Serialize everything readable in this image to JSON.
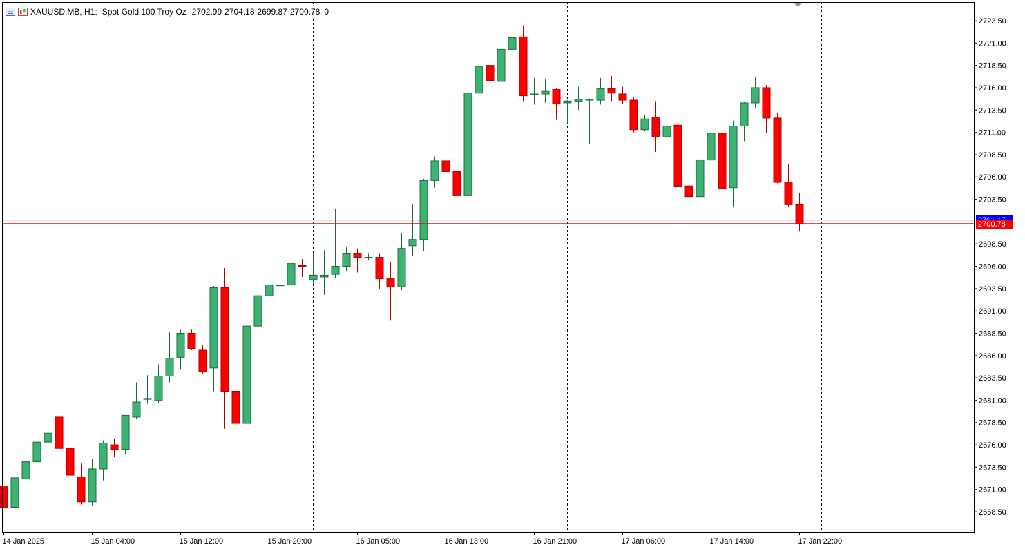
{
  "header": {
    "symbol": "XAUUSD.MB, H1:",
    "description": "Spot Gold 100 Troy Oz",
    "open": "2702.99",
    "high": "2704.18",
    "low": "2699.87",
    "close": "2700.78",
    "volume": "0"
  },
  "colors": {
    "bull": "#3cb371",
    "bear": "#ff0000",
    "ask_line": "#0000ff",
    "bid_line": "#ff0000",
    "grid": "#000000",
    "axis_text": "#000000"
  },
  "price_tags": {
    "ask": "2701.17",
    "bid": "2700.78"
  },
  "chart_data": {
    "type": "candlestick",
    "title": "XAUUSD.MB, H1: Spot Gold 100 Troy Oz",
    "timeframe": "H1",
    "y_tick_labels": [
      "2723.50",
      "2721.00",
      "2718.50",
      "2716.00",
      "2713.50",
      "2711.00",
      "2708.50",
      "2706.00",
      "2703.50",
      "2698.50",
      "2696.00",
      "2693.50",
      "2691.00",
      "2688.50",
      "2686.00",
      "2683.50",
      "2681.00",
      "2678.50",
      "2676.00",
      "2673.50",
      "2671.00",
      "2668.50"
    ],
    "x_tick_labels": [
      "14 Jan 2025",
      "15 Jan 04:00",
      "15 Jan 12:00",
      "15 Jan 20:00",
      "16 Jan 05:00",
      "16 Jan 13:00",
      "16 Jan 21:00",
      "17 Jan 06:00",
      "17 Jan 14:00",
      "17 Jan 22:00"
    ],
    "x_tick_index": [
      0,
      8,
      16,
      24,
      32,
      40,
      48,
      56,
      64,
      72
    ],
    "day_separators_index": [
      5,
      28,
      51,
      74
    ],
    "ylim": [
      2667.5,
      2725.0
    ],
    "ask": 2701.17,
    "bid": 2700.78,
    "grid": false,
    "candles": [
      {
        "o": 2671.4,
        "h": 2671.4,
        "l": 2669.0,
        "c": 2669.0
      },
      {
        "o": 2669.0,
        "h": 2672.5,
        "l": 2667.8,
        "c": 2672.3
      },
      {
        "o": 2672.2,
        "h": 2676.1,
        "l": 2671.8,
        "c": 2674.1
      },
      {
        "o": 2674.1,
        "h": 2676.4,
        "l": 2672.0,
        "c": 2676.3
      },
      {
        "o": 2676.3,
        "h": 2677.6,
        "l": 2675.9,
        "c": 2677.3
      },
      {
        "o": 2679.1,
        "h": 2679.2,
        "l": 2674.9,
        "c": 2675.6
      },
      {
        "o": 2675.6,
        "h": 2675.8,
        "l": 2672.4,
        "c": 2672.6
      },
      {
        "o": 2672.4,
        "h": 2673.9,
        "l": 2669.3,
        "c": 2669.6
      },
      {
        "o": 2669.6,
        "h": 2674.4,
        "l": 2669.1,
        "c": 2673.3
      },
      {
        "o": 2673.3,
        "h": 2676.5,
        "l": 2672.0,
        "c": 2676.2
      },
      {
        "o": 2676.0,
        "h": 2676.7,
        "l": 2674.6,
        "c": 2675.5
      },
      {
        "o": 2675.5,
        "h": 2679.1,
        "l": 2674.9,
        "c": 2679.3
      },
      {
        "o": 2679.1,
        "h": 2683.0,
        "l": 2678.9,
        "c": 2680.8
      },
      {
        "o": 2681.1,
        "h": 2683.8,
        "l": 2680.6,
        "c": 2681.2
      },
      {
        "o": 2681.0,
        "h": 2685.0,
        "l": 2680.7,
        "c": 2683.7
      },
      {
        "o": 2683.7,
        "h": 2688.6,
        "l": 2683.0,
        "c": 2685.7
      },
      {
        "o": 2685.8,
        "h": 2688.9,
        "l": 2684.5,
        "c": 2688.5
      },
      {
        "o": 2688.5,
        "h": 2688.9,
        "l": 2686.6,
        "c": 2686.8
      },
      {
        "o": 2686.6,
        "h": 2687.2,
        "l": 2683.9,
        "c": 2684.2
      },
      {
        "o": 2684.6,
        "h": 2693.8,
        "l": 2682.0,
        "c": 2693.6
      },
      {
        "o": 2693.6,
        "h": 2695.8,
        "l": 2677.8,
        "c": 2682.0
      },
      {
        "o": 2682.0,
        "h": 2683.3,
        "l": 2676.7,
        "c": 2678.4
      },
      {
        "o": 2678.4,
        "h": 2689.6,
        "l": 2677.0,
        "c": 2689.3
      },
      {
        "o": 2689.3,
        "h": 2692.8,
        "l": 2687.9,
        "c": 2692.7
      },
      {
        "o": 2692.7,
        "h": 2694.6,
        "l": 2690.7,
        "c": 2693.9
      },
      {
        "o": 2693.9,
        "h": 2694.5,
        "l": 2692.6,
        "c": 2693.9
      },
      {
        "o": 2693.9,
        "h": 2696.2,
        "l": 2693.1,
        "c": 2696.3
      },
      {
        "o": 2696.1,
        "h": 2696.8,
        "l": 2694.8,
        "c": 2696.0
      },
      {
        "o": 2694.5,
        "h": 2697.5,
        "l": 2694.0,
        "c": 2695.0
      },
      {
        "o": 2694.8,
        "h": 2697.8,
        "l": 2692.8,
        "c": 2695.0
      },
      {
        "o": 2695.1,
        "h": 2702.4,
        "l": 2694.7,
        "c": 2696.0
      },
      {
        "o": 2696.0,
        "h": 2698.2,
        "l": 2695.4,
        "c": 2697.4
      },
      {
        "o": 2697.4,
        "h": 2698.0,
        "l": 2695.3,
        "c": 2697.0
      },
      {
        "o": 2697.0,
        "h": 2697.4,
        "l": 2696.7,
        "c": 2697.0
      },
      {
        "o": 2697.0,
        "h": 2697.4,
        "l": 2693.5,
        "c": 2694.6
      },
      {
        "o": 2694.6,
        "h": 2696.5,
        "l": 2689.9,
        "c": 2693.7
      },
      {
        "o": 2693.7,
        "h": 2699.7,
        "l": 2693.3,
        "c": 2698.0
      },
      {
        "o": 2698.3,
        "h": 2703.0,
        "l": 2697.2,
        "c": 2699.0
      },
      {
        "o": 2699.0,
        "h": 2705.8,
        "l": 2697.7,
        "c": 2705.6
      },
      {
        "o": 2705.6,
        "h": 2708.3,
        "l": 2704.8,
        "c": 2707.8
      },
      {
        "o": 2707.8,
        "h": 2711.2,
        "l": 2706.3,
        "c": 2706.6
      },
      {
        "o": 2706.6,
        "h": 2707.1,
        "l": 2699.7,
        "c": 2703.9
      },
      {
        "o": 2703.9,
        "h": 2717.7,
        "l": 2701.6,
        "c": 2715.4
      },
      {
        "o": 2715.4,
        "h": 2719.0,
        "l": 2714.6,
        "c": 2718.4
      },
      {
        "o": 2718.5,
        "h": 2718.5,
        "l": 2712.4,
        "c": 2716.8
      },
      {
        "o": 2716.7,
        "h": 2722.7,
        "l": 2716.5,
        "c": 2720.3
      },
      {
        "o": 2720.3,
        "h": 2724.6,
        "l": 2719.5,
        "c": 2721.6
      },
      {
        "o": 2721.7,
        "h": 2723.0,
        "l": 2714.5,
        "c": 2715.1
      },
      {
        "o": 2715.2,
        "h": 2717.1,
        "l": 2714.1,
        "c": 2715.3
      },
      {
        "o": 2715.3,
        "h": 2717.0,
        "l": 2714.3,
        "c": 2715.6
      },
      {
        "o": 2715.8,
        "h": 2716.0,
        "l": 2712.4,
        "c": 2714.2
      },
      {
        "o": 2714.3,
        "h": 2714.6,
        "l": 2712.0,
        "c": 2714.5
      },
      {
        "o": 2714.5,
        "h": 2716.1,
        "l": 2713.5,
        "c": 2714.7
      },
      {
        "o": 2714.6,
        "h": 2714.8,
        "l": 2709.7,
        "c": 2714.7
      },
      {
        "o": 2714.6,
        "h": 2717.1,
        "l": 2714.1,
        "c": 2715.9
      },
      {
        "o": 2715.9,
        "h": 2717.3,
        "l": 2714.5,
        "c": 2715.4
      },
      {
        "o": 2715.3,
        "h": 2716.1,
        "l": 2714.2,
        "c": 2714.6
      },
      {
        "o": 2714.6,
        "h": 2714.9,
        "l": 2711.0,
        "c": 2711.3
      },
      {
        "o": 2711.3,
        "h": 2713.0,
        "l": 2711.1,
        "c": 2712.5
      },
      {
        "o": 2712.7,
        "h": 2714.5,
        "l": 2708.8,
        "c": 2710.5
      },
      {
        "o": 2710.5,
        "h": 2712.6,
        "l": 2709.5,
        "c": 2711.7
      },
      {
        "o": 2711.8,
        "h": 2712.1,
        "l": 2704.0,
        "c": 2704.9
      },
      {
        "o": 2705.0,
        "h": 2706.0,
        "l": 2702.4,
        "c": 2703.8
      },
      {
        "o": 2703.8,
        "h": 2708.4,
        "l": 2703.5,
        "c": 2707.9
      },
      {
        "o": 2707.9,
        "h": 2711.5,
        "l": 2707.1,
        "c": 2710.9
      },
      {
        "o": 2710.9,
        "h": 2710.9,
        "l": 2704.3,
        "c": 2704.7
      },
      {
        "o": 2704.8,
        "h": 2712.3,
        "l": 2702.6,
        "c": 2711.7
      },
      {
        "o": 2711.7,
        "h": 2714.4,
        "l": 2710.0,
        "c": 2714.3
      },
      {
        "o": 2714.3,
        "h": 2717.2,
        "l": 2713.7,
        "c": 2716.0
      },
      {
        "o": 2716.0,
        "h": 2716.3,
        "l": 2710.9,
        "c": 2712.6
      },
      {
        "o": 2712.6,
        "h": 2713.2,
        "l": 2705.3,
        "c": 2705.4
      },
      {
        "o": 2705.4,
        "h": 2707.5,
        "l": 2702.6,
        "c": 2702.9
      },
      {
        "o": 2702.9,
        "h": 2704.2,
        "l": 2699.9,
        "c": 2700.8
      }
    ]
  }
}
